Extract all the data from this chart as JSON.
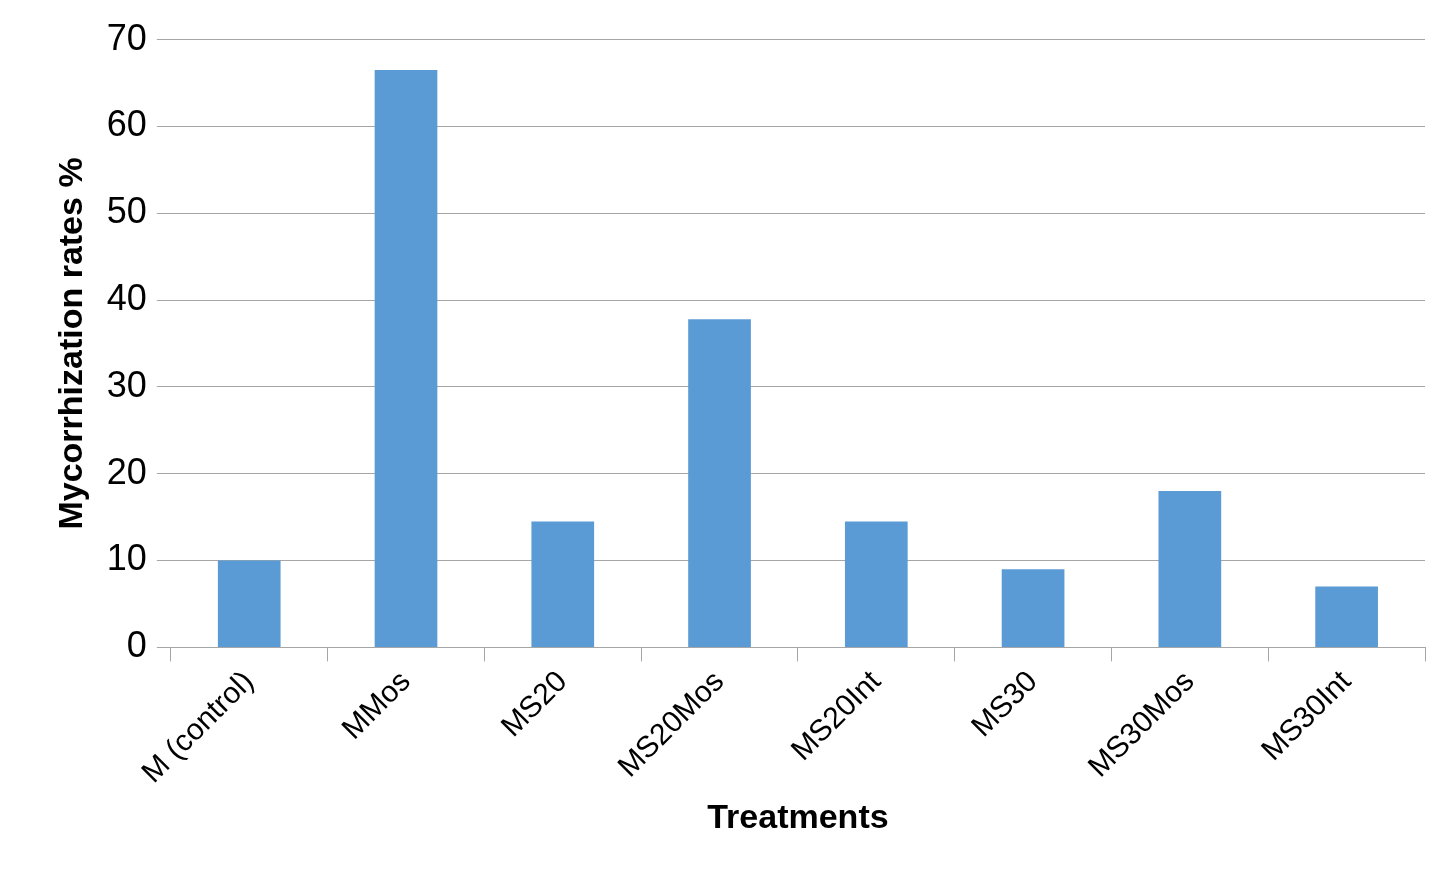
{
  "chart_data": {
    "type": "bar",
    "xlabel": "Treatments",
    "ylabel": "Mycorrhization rates %",
    "categories": [
      "M (control)",
      "MMos",
      "MS20",
      "MS20Mos",
      "MS20Int",
      "MS30",
      "MS30Mos",
      "MS30Int"
    ],
    "values": [
      10,
      66.5,
      14.5,
      37.8,
      14.5,
      9,
      18,
      7
    ],
    "color": "#5b9bd5",
    "ylim": [
      0,
      70
    ],
    "yticks": [
      0,
      10,
      20,
      30,
      40,
      50,
      60,
      70
    ],
    "grid": "y",
    "legend": false
  }
}
